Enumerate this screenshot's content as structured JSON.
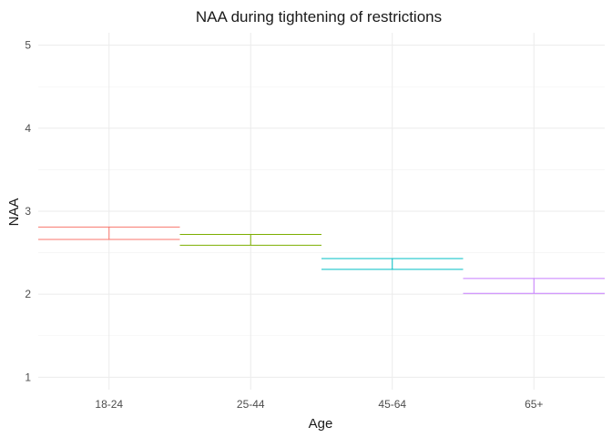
{
  "chart_data": {
    "type": "errorbar",
    "title": "NAA during tightening of restrictions",
    "xlabel": "Age",
    "ylabel": "NAA",
    "categories": [
      "18-24",
      "25-44",
      "45-64",
      "65+"
    ],
    "lower": [
      2.66,
      2.59,
      2.3,
      2.01
    ],
    "upper": [
      2.81,
      2.72,
      2.43,
      2.19
    ],
    "colors": [
      "#F8766D",
      "#7CAE00",
      "#00BFC4",
      "#C77CFF"
    ],
    "ylim": [
      0.85,
      5.15
    ],
    "yticks": [
      1,
      2,
      3,
      4,
      5
    ],
    "grid": true,
    "legend": "none"
  }
}
